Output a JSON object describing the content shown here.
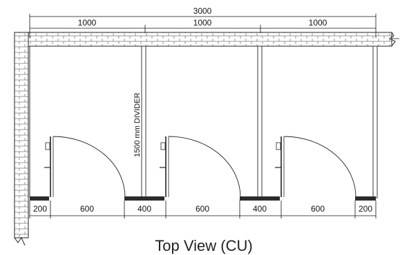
{
  "dimensions": {
    "total_width": "3000",
    "stall_width_1": "1000",
    "stall_width_2": "1000",
    "stall_width_3": "1000",
    "bottom": [
      "200",
      "600",
      "400",
      "600",
      "400",
      "600",
      "200"
    ]
  },
  "divider_label": "1500 mm DIVIDER",
  "caption": "Top View (CU)"
}
